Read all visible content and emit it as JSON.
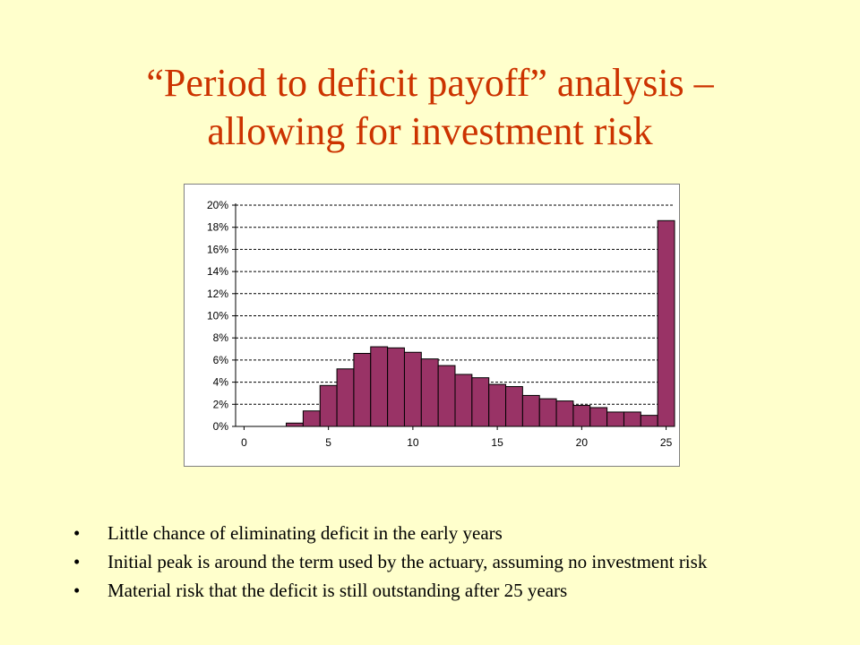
{
  "slide": {
    "title_line1": "“Period to deficit payoff” analysis –",
    "title_line2": "allowing for investment risk",
    "bullets": [
      "Little chance of eliminating deficit in the early years",
      "Initial peak is around the term used by the actuary, assuming no investment risk",
      "Material risk that the deficit is still outstanding after 25 years"
    ]
  },
  "colors": {
    "background": "#FFFFCC",
    "title": "#CC3300",
    "bar_fill": "#993366",
    "bar_stroke": "#000000"
  },
  "chart_data": {
    "type": "bar",
    "x": [
      0,
      1,
      2,
      3,
      4,
      5,
      6,
      7,
      8,
      9,
      10,
      11,
      12,
      13,
      14,
      15,
      16,
      17,
      18,
      19,
      20,
      21,
      22,
      23,
      24,
      25
    ],
    "values": [
      0,
      0,
      0,
      0.3,
      1.4,
      3.7,
      5.2,
      6.6,
      7.2,
      7.1,
      6.7,
      6.1,
      5.5,
      4.7,
      4.4,
      3.8,
      3.6,
      2.8,
      2.5,
      2.3,
      1.9,
      1.7,
      1.3,
      1.3,
      1.0,
      18.6
    ],
    "x_ticks": [
      "0",
      "5",
      "10",
      "15",
      "20",
      "25"
    ],
    "y_ticks": [
      "0%",
      "2%",
      "4%",
      "6%",
      "8%",
      "10%",
      "12%",
      "14%",
      "16%",
      "18%",
      "20%"
    ],
    "ylim": [
      0,
      20
    ],
    "xlim": [
      0,
      25
    ],
    "y_unit": "%",
    "grid": "horizontal-dashed"
  }
}
